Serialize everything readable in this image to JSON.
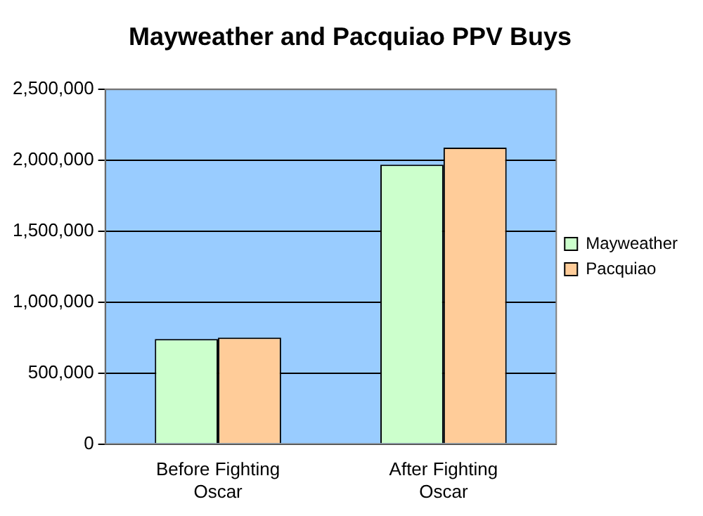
{
  "chart_data": {
    "type": "bar",
    "title": "Mayweather and Pacquiao PPV Buys",
    "categories": [
      "Before Fighting Oscar",
      "After Fighting Oscar"
    ],
    "series": [
      {
        "name": "Mayweather",
        "color": "#ccffcc",
        "values": [
          740000,
          1970000
        ]
      },
      {
        "name": "Pacquiao",
        "color": "#ffcc99",
        "values": [
          750000,
          2090000
        ]
      }
    ],
    "ylim": [
      0,
      2500000
    ],
    "yticks": [
      0,
      {
        "value": 500000,
        "label": "500,000"
      },
      {
        "value": 1000000,
        "label": "1,000,000"
      },
      {
        "value": 1500000,
        "label": "1,500,000"
      },
      {
        "value": 2000000,
        "label": "2,000,000"
      },
      {
        "value": 2500000,
        "label": "2,500,000"
      }
    ],
    "grid": "y",
    "legend": "right"
  }
}
